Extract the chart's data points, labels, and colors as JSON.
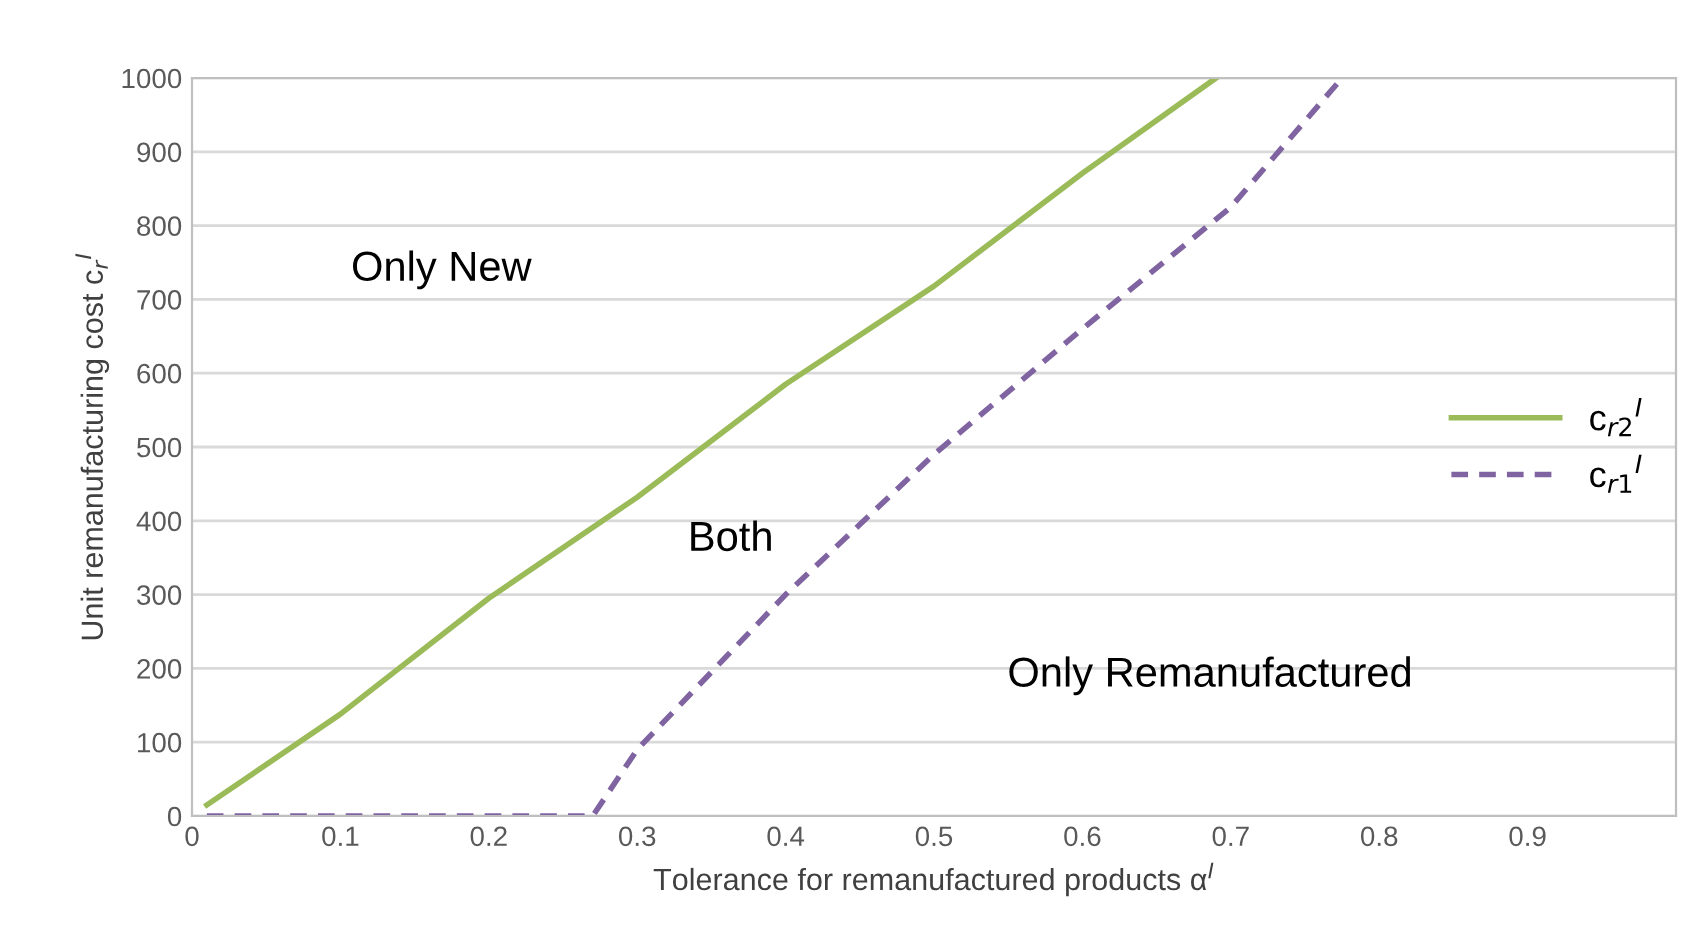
{
  "chart_data": {
    "type": "line",
    "xlabel": "Tolerance for remanufactured products α$^{I}$",
    "ylabel": "Unit remanufacturing cost c$_{r}$$^{I}$",
    "series": [
      {
        "name": "c$_{r2}$$^{I}$",
        "color": "#9bbb59",
        "line_style": "solid",
        "x": [
          0.01,
          0.1,
          0.2,
          0.3,
          0.4,
          0.5,
          0.6,
          0.69
        ],
        "values": [
          15,
          138,
          295,
          432,
          585,
          718,
          871,
          1000
        ]
      },
      {
        "name": "c$_{r1}$$^{I}$",
        "color": "#8064a2",
        "line_style": "dashed",
        "x": [
          0.01,
          0.27,
          0.3,
          0.4,
          0.5,
          0.6,
          0.7,
          0.775
        ],
        "values": [
          0,
          0,
          90,
          300,
          490,
          660,
          825,
          1000
        ]
      }
    ],
    "xlim": [
      0,
      1
    ],
    "xticks": [
      0,
      0.1,
      0.2,
      0.3,
      0.4,
      0.5,
      0.6,
      0.7,
      0.8,
      0.9
    ],
    "ylim": [
      0,
      1000
    ],
    "yticks": [
      0,
      100,
      200,
      300,
      400,
      500,
      600,
      700,
      800,
      900,
      1000
    ],
    "grid": "y",
    "legend": "right",
    "marker": "none",
    "annotations": [
      "Only New",
      "Both",
      "Only Remanufactured"
    ]
  }
}
